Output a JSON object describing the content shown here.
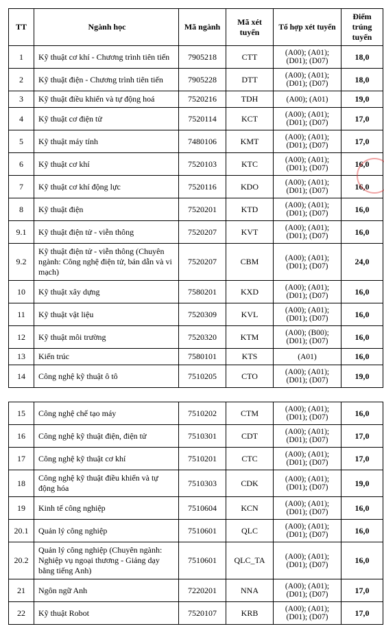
{
  "headers": {
    "tt": "TT",
    "nganh": "Ngành học",
    "ma": "Mã ngành",
    "maxt": "Mã xét tuyển",
    "to": "Tổ hợp xét tuyển",
    "diem": "Điểm trúng tuyển"
  },
  "table1_rows": [
    {
      "tt": "1",
      "name": "Kỹ thuật cơ khí - Chương trình tiên tiến",
      "ma": "7905218",
      "maxt": "CTT",
      "to": "(A00); (A01); (D01); (D07)",
      "diem": "18,0"
    },
    {
      "tt": "2",
      "name": "Kỹ thuật điện - Chương trình tiên tiến",
      "ma": "7905228",
      "maxt": "DTT",
      "to": "(A00); (A01); (D01); (D07)",
      "diem": "18,0"
    },
    {
      "tt": "3",
      "name": "Kỹ thuật điều khiển và tự động hoá",
      "ma": "7520216",
      "maxt": "TDH",
      "to": "(A00); (A01)",
      "diem": "19,0"
    },
    {
      "tt": "4",
      "name": "Kỹ thuật cơ điện tử",
      "ma": "7520114",
      "maxt": "KCT",
      "to": "(A00); (A01); (D01); (D07)",
      "diem": "17,0"
    },
    {
      "tt": "5",
      "name": "Kỹ thuật máy tính",
      "ma": "7480106",
      "maxt": "KMT",
      "to": "(A00); (A01); (D01); (D07)",
      "diem": "17,0"
    },
    {
      "tt": "6",
      "name": "Kỹ thuật cơ khí",
      "ma": "7520103",
      "maxt": "KTC",
      "to": "(A00); (A01); (D01); (D07)",
      "diem": "16,0"
    },
    {
      "tt": "7",
      "name": "Kỹ thuật cơ khí động lực",
      "ma": "7520116",
      "maxt": "KDO",
      "to": "(A00); (A01); (D01); (D07)",
      "diem": "16,0"
    },
    {
      "tt": "8",
      "name": "Kỹ thuật điện",
      "ma": "7520201",
      "maxt": "KTD",
      "to": "(A00); (A01); (D01); (D07)",
      "diem": "16,0"
    },
    {
      "tt": "9.1",
      "name": "Kỹ thuật điện tử - viễn thông",
      "ma": "7520207",
      "maxt": "KVT",
      "to": "(A00); (A01); (D01); (D07)",
      "diem": "16,0"
    },
    {
      "tt": "9.2",
      "name": "Kỹ thuật điện tử - viễn thông (Chuyên ngành: Công nghệ điện tử, bán dẫn và vi mạch)",
      "ma": "7520207",
      "maxt": "CBM",
      "to": "(A00); (A01); (D01); (D07)",
      "diem": "24,0"
    },
    {
      "tt": "10",
      "name": "Kỹ thuật xây dựng",
      "ma": "7580201",
      "maxt": "KXD",
      "to": "(A00); (A01); (D01); (D07)",
      "diem": "16,0"
    },
    {
      "tt": "11",
      "name": "Kỹ thuật vật liệu",
      "ma": "7520309",
      "maxt": "KVL",
      "to": "(A00); (A01); (D01); (D07)",
      "diem": "16,0"
    },
    {
      "tt": "12",
      "name": "Kỹ thuật môi trường",
      "ma": "7520320",
      "maxt": "KTM",
      "to": "(A00); (B00); (D01); (D07)",
      "diem": "16,0"
    },
    {
      "tt": "13",
      "name": "Kiến trúc",
      "ma": "7580101",
      "maxt": "KTS",
      "to": "(A01)",
      "diem": "16,0"
    },
    {
      "tt": "14",
      "name": "Công nghệ kỹ thuật ô tô",
      "ma": "7510205",
      "maxt": "CTO",
      "to": "(A00); (A01); (D01); (D07)",
      "diem": "19,0"
    }
  ],
  "table2_rows": [
    {
      "tt": "15",
      "name": "Công nghệ chế tạo máy",
      "ma": "7510202",
      "maxt": "CTM",
      "to": "(A00); (A01); (D01); (D07)",
      "diem": "16,0"
    },
    {
      "tt": "16",
      "name": "Công nghệ kỹ thuật điện, điện tử",
      "ma": "7510301",
      "maxt": "CDT",
      "to": "(A00); (A01); (D01); (D07)",
      "diem": "17,0"
    },
    {
      "tt": "17",
      "name": "Công nghệ kỹ thuật cơ khí",
      "ma": "7510201",
      "maxt": "CTC",
      "to": "(A00); (A01); (D01); (D07)",
      "diem": "17,0"
    },
    {
      "tt": "18",
      "name": "Công nghệ kỹ thuật điều khiển và tự động hóa",
      "ma": "7510303",
      "maxt": "CDK",
      "to": "(A00); (A01); (D01); (D07)",
      "diem": "19,0"
    },
    {
      "tt": "19",
      "name": "Kinh tế công nghiệp",
      "ma": "7510604",
      "maxt": "KCN",
      "to": "(A00); (A01); (D01); (D07)",
      "diem": "16,0"
    },
    {
      "tt": "20.1",
      "name": "Quản lý công nghiệp",
      "ma": "7510601",
      "maxt": "QLC",
      "to": "(A00); (A01); (D01); (D07)",
      "diem": "16,0"
    },
    {
      "tt": "20.2",
      "name": "Quản lý công nghiệp\n(Chuyên ngành: Nghiệp vụ ngoại thương - Giảng dạy bằng tiếng Anh)",
      "ma": "7510601",
      "maxt": "QLC_TA",
      "to": "(A00); (A01); (D01); (D07)",
      "diem": "16,0"
    },
    {
      "tt": "21",
      "name": "Ngôn ngữ Anh",
      "ma": "7220201",
      "maxt": "NNA",
      "to": "(A00); (A01); (D01); (D07)",
      "diem": "17,0"
    },
    {
      "tt": "22",
      "name": "Kỹ thuật Robot",
      "ma": "7520107",
      "maxt": "KRB",
      "to": "(A00); (A01); (D01); (D07)",
      "diem": "17,0"
    }
  ]
}
